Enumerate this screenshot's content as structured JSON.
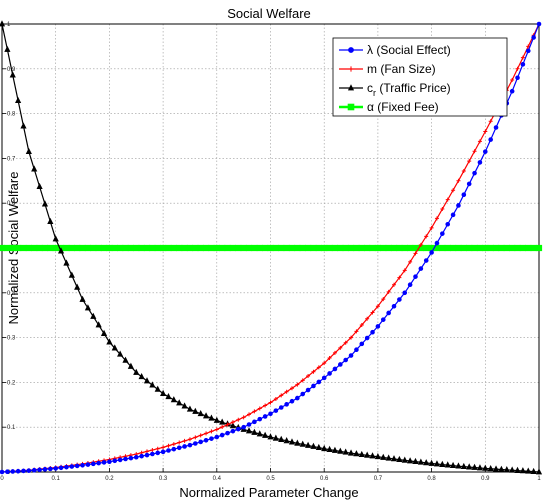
{
  "chart_data": {
    "type": "line",
    "title": "Social Welfare",
    "xlabel": "Normalized Parameter Change",
    "ylabel": "Normalized Social Welfare",
    "xlim": [
      0,
      1
    ],
    "ylim": [
      0,
      1
    ],
    "grid": true,
    "legend_position": "top-right",
    "x_ticks": [
      "0",
      "0.1",
      "0.2",
      "0.3",
      "0.4",
      "0.5",
      "0.6",
      "0.7",
      "0.8",
      "0.9",
      "1"
    ],
    "y_ticks": [
      "0",
      "0.1",
      "0.2",
      "0.3",
      "0.4",
      "0.5",
      "0.6",
      "0.7",
      "0.8",
      "0.9",
      "1"
    ],
    "x": [
      0,
      0.05,
      0.1,
      0.15,
      0.2,
      0.25,
      0.3,
      0.35,
      0.4,
      0.45,
      0.5,
      0.55,
      0.6,
      0.65,
      0.7,
      0.75,
      0.8,
      0.85,
      0.9,
      0.95,
      1.0
    ],
    "series": [
      {
        "name_main": "λ",
        "name_rest": " (Social Effect)",
        "color": "#0000ff",
        "marker": "circle",
        "values": [
          0,
          0.003,
          0.008,
          0.015,
          0.023,
          0.033,
          0.045,
          0.06,
          0.078,
          0.1,
          0.13,
          0.165,
          0.21,
          0.26,
          0.325,
          0.4,
          0.49,
          0.595,
          0.715,
          0.85,
          1.0
        ]
      },
      {
        "name_main": "m",
        "name_rest": " (Fan Size)",
        "color": "#ff0000",
        "marker": "plus",
        "values": [
          0,
          0.004,
          0.01,
          0.018,
          0.028,
          0.04,
          0.055,
          0.073,
          0.095,
          0.122,
          0.155,
          0.195,
          0.243,
          0.3,
          0.37,
          0.45,
          0.545,
          0.65,
          0.76,
          0.875,
          1.0
        ]
      },
      {
        "name_main": "c",
        "name_sub": "r",
        "name_rest": " (Traffic Price)",
        "color": "#000000",
        "marker": "triangle",
        "values": [
          1.0,
          0.715,
          0.52,
          0.385,
          0.29,
          0.222,
          0.175,
          0.14,
          0.115,
          0.095,
          0.078,
          0.064,
          0.052,
          0.042,
          0.034,
          0.026,
          0.019,
          0.013,
          0.008,
          0.004,
          0.0
        ]
      },
      {
        "name_main": "α",
        "name_rest": " (Fixed Fee)",
        "color": "#00ff00",
        "marker": "square",
        "values": [
          0.5,
          0.5,
          0.5,
          0.5,
          0.5,
          0.5,
          0.5,
          0.5,
          0.5,
          0.5,
          0.5,
          0.5,
          0.5,
          0.5,
          0.5,
          0.5,
          0.5,
          0.5,
          0.5,
          0.5,
          0.5
        ]
      }
    ]
  }
}
